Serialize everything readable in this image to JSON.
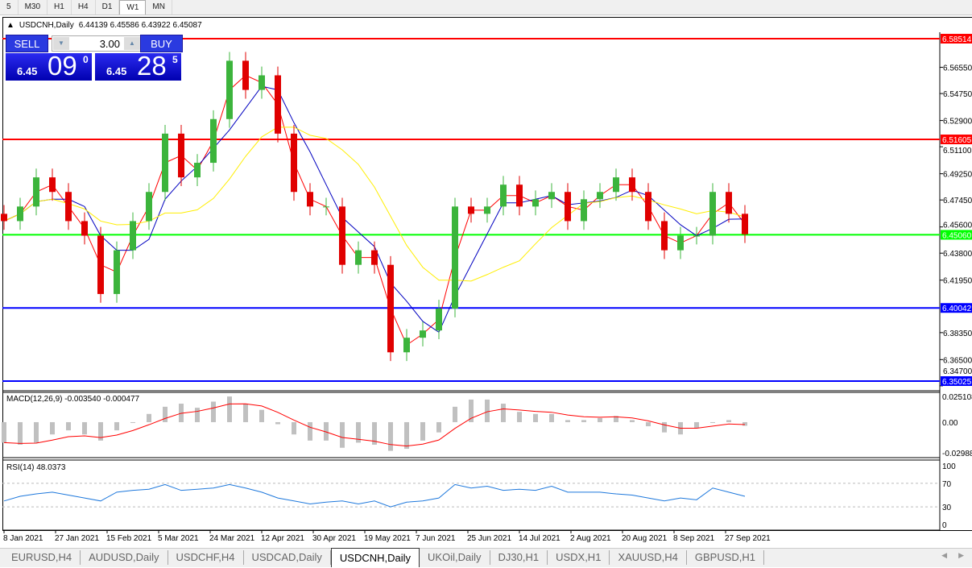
{
  "timeframes": [
    "5",
    "M30",
    "H1",
    "H4",
    "D1",
    "W1",
    "MN"
  ],
  "active_timeframe": "W1",
  "symbol_header": {
    "symbol": "USDCNH,Daily",
    "open": "6.44139",
    "high": "6.45586",
    "low": "6.43922",
    "close": "6.45087"
  },
  "trade_panel": {
    "sell_label": "SELL",
    "buy_label": "BUY",
    "lot": "3.00",
    "sell_small": "6.45",
    "sell_big": "09",
    "sell_sup": "0",
    "buy_small": "6.45",
    "buy_big": "28",
    "buy_sup": "5"
  },
  "chart_data": {
    "type": "candlestick",
    "price_range": [
      6.347,
      6.5885
    ],
    "price_ticks": [
      "6.56550",
      "6.54750",
      "6.52900",
      "6.51100",
      "6.49250",
      "6.47450",
      "6.45600",
      "6.43800",
      "6.41950",
      "6.38350",
      "6.36500",
      "6.34700"
    ],
    "date_ticks": [
      "8 Jan 2021",
      "27 Jan 2021",
      "15 Feb 2021",
      "5 Mar 2021",
      "24 Mar 2021",
      "12 Apr 2021",
      "30 Apr 2021",
      "19 May 2021",
      "7 Jun 2021",
      "25 Jun 2021",
      "14 Jul 2021",
      "2 Aug 2021",
      "20 Aug 2021",
      "8 Sep 2021",
      "27 Sep 2021"
    ],
    "closes": [
      6.46,
      6.47,
      6.49,
      6.48,
      6.46,
      6.45,
      6.41,
      6.44,
      6.46,
      6.48,
      6.52,
      6.49,
      6.5,
      6.53,
      6.57,
      6.55,
      6.56,
      6.52,
      6.48,
      6.47,
      6.47,
      6.43,
      6.44,
      6.43,
      6.37,
      6.38,
      6.385,
      6.4,
      6.47,
      6.465,
      6.47,
      6.485,
      6.47,
      6.475,
      6.48,
      6.46,
      6.475,
      6.48,
      6.49,
      6.48,
      6.46,
      6.44,
      6.45,
      6.45,
      6.48,
      6.465,
      6.451
    ],
    "levels": [
      {
        "price": "6.58514",
        "color": "#ff0000"
      },
      {
        "price": "6.51605",
        "color": "#ff0000"
      },
      {
        "price": "6.45060",
        "color": "#00ff00"
      },
      {
        "price": "6.40042",
        "color": "#0000ff"
      },
      {
        "price": "6.35025",
        "color": "#0000ff"
      }
    ],
    "bull_color": "#3cb43c",
    "bear_color": "#e00000",
    "ma_colors": [
      "#ff0000",
      "#0000c0",
      "#ffee00"
    ],
    "macd": {
      "label": "MACD(12,26,9) -0.003540 -0.000477",
      "range": [
        -0.02988,
        0.025108
      ],
      "ticks": [
        "0.025108",
        "0.00",
        "-0.02988"
      ],
      "histogram": [
        -0.02,
        -0.022,
        -0.02,
        -0.012,
        -0.008,
        -0.012,
        -0.018,
        -0.008,
        0,
        0.008,
        0.015,
        0.018,
        0.014,
        0.02,
        0.025,
        0.018,
        0.012,
        -0.002,
        -0.012,
        -0.018,
        -0.018,
        -0.025,
        -0.02,
        -0.022,
        -0.028,
        -0.026,
        -0.018,
        -0.01,
        0.015,
        0.022,
        0.022,
        0.018,
        0.01,
        0.008,
        0.008,
        0.002,
        0.002,
        0.004,
        0.006,
        0.002,
        -0.004,
        -0.01,
        -0.012,
        -0.006,
        0,
        0.002,
        -0.0035
      ],
      "histogram_color": "#c0c0c0",
      "signal_color": "#ff0000"
    },
    "rsi": {
      "label": "RSI(14) 48.0373",
      "ticks": [
        "100",
        "70",
        "30",
        "0"
      ],
      "color": "#1e78dc",
      "values": [
        40,
        48,
        52,
        55,
        50,
        45,
        40,
        55,
        58,
        60,
        68,
        58,
        60,
        62,
        68,
        62,
        55,
        45,
        40,
        35,
        38,
        40,
        35,
        40,
        30,
        38,
        40,
        45,
        68,
        62,
        65,
        58,
        60,
        58,
        65,
        55,
        55,
        55,
        52,
        50,
        45,
        40,
        45,
        42,
        62,
        55,
        48
      ]
    }
  },
  "chart_tabs": [
    "EURUSD,H4",
    "AUDUSD,Daily",
    "USDCHF,H4",
    "USDCAD,Daily",
    "USDCNH,Daily",
    "UKOil,Daily",
    "DJ30,H1",
    "USDX,H1",
    "XAUUSD,H4",
    "GBPUSD,H1"
  ],
  "active_chart_tab": "USDCNH,Daily",
  "scroll": {
    "left": "◀",
    "right": "▶"
  }
}
